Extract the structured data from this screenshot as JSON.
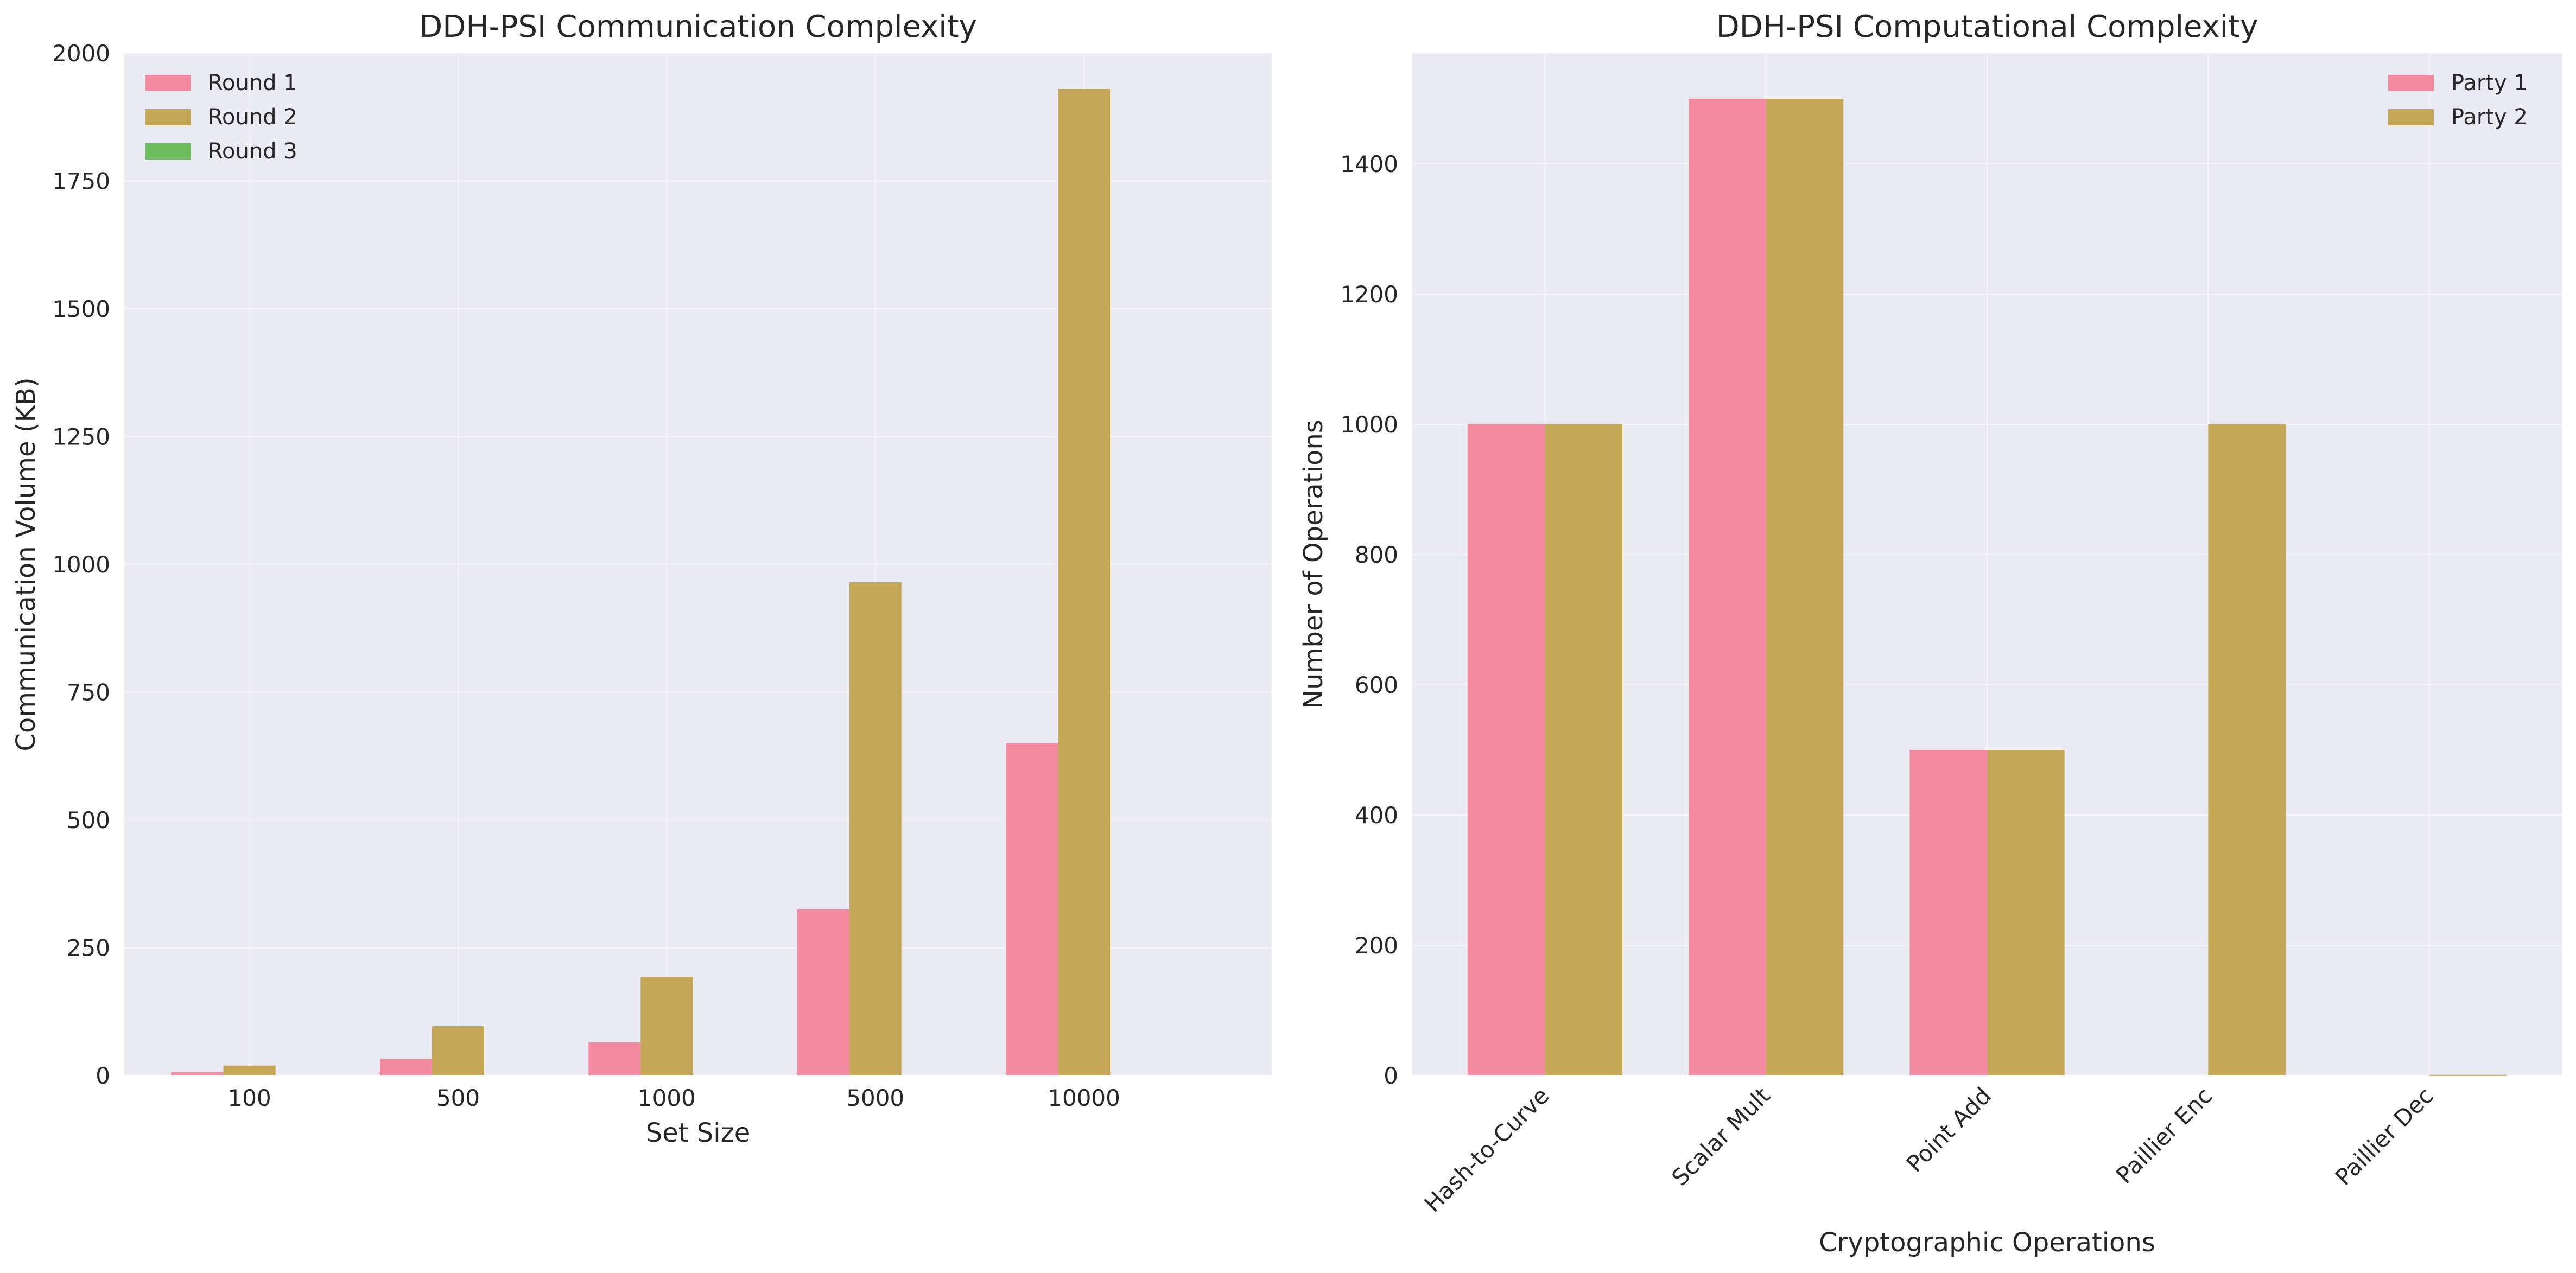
{
  "chart_data": [
    {
      "type": "bar",
      "title": "DDH-PSI Communication Complexity",
      "xlabel": "Set Size",
      "ylabel": "Communication Volume (KB)",
      "categories": [
        "100",
        "500",
        "1000",
        "5000",
        "10000"
      ],
      "series": [
        {
          "name": "Round 1",
          "values": [
            6.5,
            32.5,
            65,
            325,
            650
          ],
          "color": "#f48a9f"
        },
        {
          "name": "Round 2",
          "values": [
            19.3,
            96.5,
            193,
            965,
            1930
          ],
          "color": "#c4a757"
        },
        {
          "name": "Round 3",
          "values": [
            0,
            0,
            0,
            0,
            0
          ],
          "color": "#6fbd5f"
        }
      ],
      "ylim": [
        0,
        2000
      ],
      "yticks": [
        0,
        250,
        500,
        750,
        1000,
        1250,
        1500,
        1750,
        2000
      ],
      "grid": true,
      "legend": "top-left"
    },
    {
      "type": "bar",
      "title": "DDH-PSI Computational Complexity",
      "xlabel": "Cryptographic Operations",
      "ylabel": "Number of Operations",
      "categories": [
        "Hash-to-Curve",
        "Scalar Mult",
        "Point Add",
        "Paillier Enc",
        "Paillier Dec"
      ],
      "series": [
        {
          "name": "Party 1",
          "values": [
            1000,
            1500,
            500,
            0,
            0
          ],
          "color": "#f48a9f"
        },
        {
          "name": "Party 2",
          "values": [
            1000,
            1500,
            500,
            1000,
            1
          ],
          "color": "#c4a757"
        }
      ],
      "ylim": [
        0,
        1570
      ],
      "yticks": [
        0,
        200,
        400,
        600,
        800,
        1000,
        1200,
        1400
      ],
      "grid": true,
      "legend": "top-right",
      "xtick_rotation": 45
    }
  ]
}
